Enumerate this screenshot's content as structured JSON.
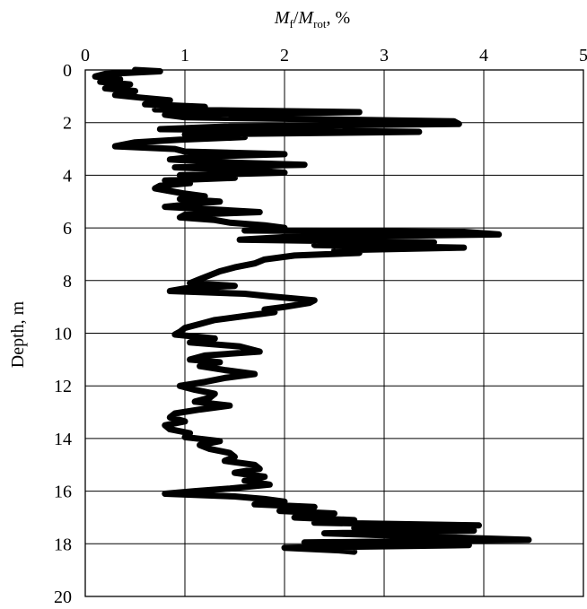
{
  "chart_data": {
    "type": "line",
    "orientation": "depth-profile",
    "title": "",
    "xlabel": {
      "prefix": "M",
      "prefix_sub": "f",
      "slash": "/",
      "mid": "M",
      "mid_sub": "rot",
      "suffix": ", %"
    },
    "ylabel": "Depth, m",
    "xlim": [
      0,
      5
    ],
    "ylim": [
      0,
      20
    ],
    "y_inverted": true,
    "x_axis_position": "top",
    "x_ticks": [
      "0",
      "1",
      "2",
      "3",
      "4",
      "5"
    ],
    "y_ticks": [
      "0",
      "2",
      "4",
      "6",
      "8",
      "10",
      "12",
      "14",
      "16",
      "18",
      "20"
    ],
    "grid": true,
    "legend": "none",
    "line_color": "#000000",
    "series": [
      {
        "points": [
          [
            0.5,
            0.0
          ],
          [
            0.75,
            0.05
          ],
          [
            0.2,
            0.15
          ],
          [
            0.1,
            0.25
          ],
          [
            0.35,
            0.35
          ],
          [
            0.15,
            0.45
          ],
          [
            0.45,
            0.55
          ],
          [
            0.2,
            0.7
          ],
          [
            0.5,
            0.8
          ],
          [
            0.3,
            0.95
          ],
          [
            0.55,
            1.05
          ],
          [
            0.85,
            1.15
          ],
          [
            0.6,
            1.3
          ],
          [
            1.2,
            1.4
          ],
          [
            0.7,
            1.5
          ],
          [
            2.75,
            1.6
          ],
          [
            0.8,
            1.7
          ],
          [
            1.0,
            1.8
          ],
          [
            3.7,
            1.95
          ],
          [
            3.75,
            2.05
          ],
          [
            1.4,
            2.15
          ],
          [
            0.75,
            2.25
          ],
          [
            3.35,
            2.35
          ],
          [
            1.0,
            2.45
          ],
          [
            1.6,
            2.55
          ],
          [
            0.95,
            2.65
          ],
          [
            0.5,
            2.75
          ],
          [
            0.3,
            2.9
          ],
          [
            0.9,
            3.0
          ],
          [
            1.0,
            3.1
          ],
          [
            2.0,
            3.2
          ],
          [
            1.1,
            3.3
          ],
          [
            0.85,
            3.4
          ],
          [
            1.3,
            3.5
          ],
          [
            2.2,
            3.6
          ],
          [
            0.9,
            3.7
          ],
          [
            1.6,
            3.8
          ],
          [
            2.0,
            3.9
          ],
          [
            0.95,
            4.0
          ],
          [
            1.5,
            4.1
          ],
          [
            0.8,
            4.2
          ],
          [
            1.05,
            4.3
          ],
          [
            0.75,
            4.4
          ],
          [
            0.7,
            4.5
          ],
          [
            0.85,
            4.6
          ],
          [
            1.0,
            4.7
          ],
          [
            1.2,
            4.8
          ],
          [
            0.95,
            4.9
          ],
          [
            1.35,
            5.0
          ],
          [
            1.05,
            5.1
          ],
          [
            0.8,
            5.2
          ],
          [
            1.3,
            5.3
          ],
          [
            1.75,
            5.4
          ],
          [
            1.0,
            5.5
          ],
          [
            0.95,
            5.6
          ],
          [
            1.3,
            5.7
          ],
          [
            1.45,
            5.8
          ],
          [
            1.8,
            5.9
          ],
          [
            2.0,
            6.0
          ],
          [
            1.6,
            6.1
          ],
          [
            3.8,
            6.15
          ],
          [
            4.15,
            6.25
          ],
          [
            2.0,
            6.35
          ],
          [
            1.55,
            6.45
          ],
          [
            3.5,
            6.55
          ],
          [
            2.3,
            6.65
          ],
          [
            3.8,
            6.75
          ],
          [
            2.5,
            6.85
          ],
          [
            2.75,
            6.95
          ],
          [
            2.1,
            7.05
          ],
          [
            1.8,
            7.2
          ],
          [
            1.7,
            7.35
          ],
          [
            1.5,
            7.5
          ],
          [
            1.35,
            7.65
          ],
          [
            1.25,
            7.8
          ],
          [
            1.15,
            7.95
          ],
          [
            1.05,
            8.1
          ],
          [
            1.5,
            8.2
          ],
          [
            1.0,
            8.3
          ],
          [
            0.85,
            8.4
          ],
          [
            1.6,
            8.5
          ],
          [
            1.85,
            8.6
          ],
          [
            2.3,
            8.75
          ],
          [
            2.25,
            8.85
          ],
          [
            2.0,
            9.0
          ],
          [
            1.8,
            9.1
          ],
          [
            1.9,
            9.2
          ],
          [
            1.6,
            9.35
          ],
          [
            1.3,
            9.5
          ],
          [
            1.15,
            9.65
          ],
          [
            1.0,
            9.8
          ],
          [
            0.95,
            9.95
          ],
          [
            0.9,
            10.05
          ],
          [
            1.3,
            10.2
          ],
          [
            1.05,
            10.35
          ],
          [
            1.55,
            10.5
          ],
          [
            1.75,
            10.7
          ],
          [
            1.2,
            10.85
          ],
          [
            1.05,
            11.0
          ],
          [
            1.35,
            11.1
          ],
          [
            1.15,
            11.25
          ],
          [
            1.4,
            11.4
          ],
          [
            1.7,
            11.55
          ],
          [
            1.4,
            11.7
          ],
          [
            1.2,
            11.85
          ],
          [
            0.95,
            12.0
          ],
          [
            1.1,
            12.15
          ],
          [
            1.3,
            12.3
          ],
          [
            1.25,
            12.45
          ],
          [
            1.1,
            12.6
          ],
          [
            1.45,
            12.75
          ],
          [
            1.15,
            12.9
          ],
          [
            0.9,
            13.05
          ],
          [
            0.85,
            13.2
          ],
          [
            1.0,
            13.35
          ],
          [
            0.8,
            13.5
          ],
          [
            0.85,
            13.65
          ],
          [
            1.05,
            13.8
          ],
          [
            1.0,
            13.95
          ],
          [
            1.35,
            14.1
          ],
          [
            1.15,
            14.25
          ],
          [
            1.25,
            14.4
          ],
          [
            1.45,
            14.55
          ],
          [
            1.5,
            14.7
          ],
          [
            1.4,
            14.85
          ],
          [
            1.7,
            15.0
          ],
          [
            1.75,
            15.15
          ],
          [
            1.5,
            15.3
          ],
          [
            1.8,
            15.45
          ],
          [
            1.6,
            15.6
          ],
          [
            1.85,
            15.75
          ],
          [
            1.45,
            15.9
          ],
          [
            1.1,
            16.0
          ],
          [
            0.8,
            16.1
          ],
          [
            1.5,
            16.2
          ],
          [
            1.8,
            16.3
          ],
          [
            2.0,
            16.4
          ],
          [
            1.7,
            16.5
          ],
          [
            2.3,
            16.6
          ],
          [
            1.95,
            16.75
          ],
          [
            2.5,
            16.85
          ],
          [
            2.1,
            17.0
          ],
          [
            2.7,
            17.1
          ],
          [
            2.3,
            17.2
          ],
          [
            3.95,
            17.3
          ],
          [
            2.7,
            17.4
          ],
          [
            3.9,
            17.5
          ],
          [
            2.4,
            17.6
          ],
          [
            3.2,
            17.7
          ],
          [
            4.45,
            17.85
          ],
          [
            2.2,
            17.95
          ],
          [
            3.85,
            18.05
          ],
          [
            2.0,
            18.15
          ],
          [
            2.55,
            18.25
          ],
          [
            2.7,
            18.3
          ]
        ]
      }
    ]
  }
}
